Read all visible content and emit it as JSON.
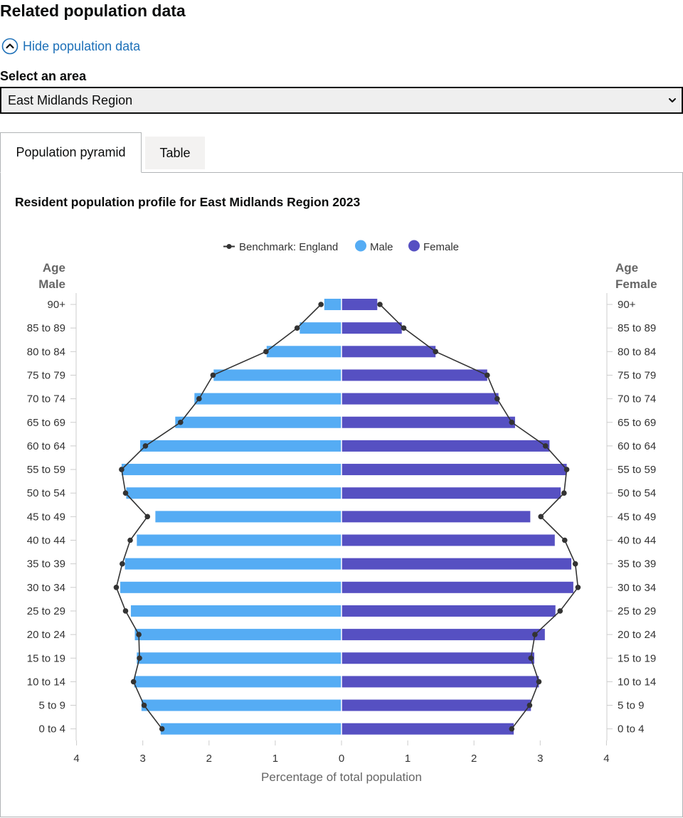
{
  "heading": "Related population data",
  "toggle_label": "Hide population data",
  "area_label": "Select an area",
  "area_selected": "East Midlands Region",
  "tabs": [
    {
      "label": "Population pyramid"
    },
    {
      "label": "Table"
    }
  ],
  "colors": {
    "male": "#55acf4",
    "female": "#5650c2",
    "benchmark": "#333333"
  },
  "chart_data": {
    "type": "bar",
    "title": "Resident population profile for East Midlands Region 2023",
    "left_axis_header": [
      "Age",
      "Male"
    ],
    "right_axis_header": [
      "Age",
      "Female"
    ],
    "xlabel": "Percentage of total population",
    "xlim": [
      -4,
      4
    ],
    "x_tick_labels": [
      "4",
      "3",
      "2",
      "1",
      "0",
      "1",
      "2",
      "3",
      "4"
    ],
    "legend_placement": "top-center",
    "categories": [
      "90+",
      "85 to 89",
      "80 to 84",
      "75 to 79",
      "70 to 74",
      "65 to 69",
      "60 to 64",
      "55 to 59",
      "50 to 54",
      "45 to 49",
      "40 to 44",
      "35 to 39",
      "30 to 34",
      "25 to 29",
      "20 to 24",
      "15 to 19",
      "10 to 14",
      "5 to 9",
      "0 to 4"
    ],
    "series": [
      {
        "name": "Male",
        "values": [
          0.26,
          0.63,
          1.13,
          1.93,
          2.22,
          2.51,
          3.04,
          3.32,
          3.25,
          2.81,
          3.09,
          3.27,
          3.34,
          3.18,
          3.12,
          3.09,
          3.13,
          3.02,
          2.73
        ]
      },
      {
        "name": "Female",
        "values": [
          0.54,
          0.91,
          1.42,
          2.2,
          2.37,
          2.62,
          3.14,
          3.4,
          3.31,
          2.85,
          3.22,
          3.47,
          3.5,
          3.23,
          3.07,
          2.91,
          2.98,
          2.86,
          2.6
        ]
      },
      {
        "name": "Benchmark: England",
        "male": [
          0.31,
          0.67,
          1.14,
          1.94,
          2.15,
          2.43,
          2.96,
          3.32,
          3.26,
          2.93,
          3.19,
          3.31,
          3.4,
          3.26,
          3.06,
          3.05,
          3.14,
          2.98,
          2.71
        ],
        "female": [
          0.58,
          0.94,
          1.42,
          2.2,
          2.35,
          2.57,
          3.08,
          3.4,
          3.36,
          3.01,
          3.37,
          3.53,
          3.57,
          3.3,
          2.92,
          2.86,
          2.98,
          2.84,
          2.57
        ]
      }
    ]
  }
}
